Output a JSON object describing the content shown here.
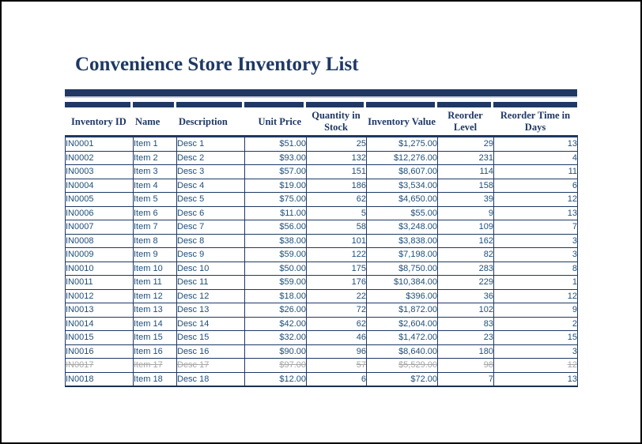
{
  "title": "Convenience Store Inventory List",
  "colors": {
    "navy": "#1F3864",
    "data_text_blue": "#1F4E79",
    "struck_gray": "#A6A6A6",
    "frame_black": "#000000"
  },
  "table": {
    "columns": [
      {
        "key": "id",
        "label": "Inventory ID"
      },
      {
        "key": "name",
        "label": "Name"
      },
      {
        "key": "desc",
        "label": "Description"
      },
      {
        "key": "price",
        "label": "Unit Price"
      },
      {
        "key": "qty",
        "label": "Quantity in Stock"
      },
      {
        "key": "value",
        "label": "Inventory Value"
      },
      {
        "key": "reorder_level",
        "label": "Reorder Level"
      },
      {
        "key": "reorder_days",
        "label": "Reorder Time in Days"
      }
    ],
    "rows": [
      {
        "id": "IN0001",
        "name": "Item 1",
        "desc": "Desc 1",
        "price": "$51.00",
        "qty": "25",
        "value": "$1,275.00",
        "reorder_level": "29",
        "reorder_days": "13",
        "struck": false
      },
      {
        "id": "IN0002",
        "name": "Item 2",
        "desc": "Desc 2",
        "price": "$93.00",
        "qty": "132",
        "value": "$12,276.00",
        "reorder_level": "231",
        "reorder_days": "4",
        "struck": false
      },
      {
        "id": "IN0003",
        "name": "Item 3",
        "desc": "Desc 3",
        "price": "$57.00",
        "qty": "151",
        "value": "$8,607.00",
        "reorder_level": "114",
        "reorder_days": "11",
        "struck": false
      },
      {
        "id": "IN0004",
        "name": "Item 4",
        "desc": "Desc 4",
        "price": "$19.00",
        "qty": "186",
        "value": "$3,534.00",
        "reorder_level": "158",
        "reorder_days": "6",
        "struck": false
      },
      {
        "id": "IN0005",
        "name": "Item 5",
        "desc": "Desc 5",
        "price": "$75.00",
        "qty": "62",
        "value": "$4,650.00",
        "reorder_level": "39",
        "reorder_days": "12",
        "struck": false
      },
      {
        "id": "IN0006",
        "name": "Item 6",
        "desc": "Desc 6",
        "price": "$11.00",
        "qty": "5",
        "value": "$55.00",
        "reorder_level": "9",
        "reorder_days": "13",
        "struck": false
      },
      {
        "id": "IN0007",
        "name": "Item 7",
        "desc": "Desc 7",
        "price": "$56.00",
        "qty": "58",
        "value": "$3,248.00",
        "reorder_level": "109",
        "reorder_days": "7",
        "struck": false
      },
      {
        "id": "IN0008",
        "name": "Item 8",
        "desc": "Desc 8",
        "price": "$38.00",
        "qty": "101",
        "value": "$3,838.00",
        "reorder_level": "162",
        "reorder_days": "3",
        "struck": false
      },
      {
        "id": "IN0009",
        "name": "Item 9",
        "desc": "Desc 9",
        "price": "$59.00",
        "qty": "122",
        "value": "$7,198.00",
        "reorder_level": "82",
        "reorder_days": "3",
        "struck": false
      },
      {
        "id": "IN0010",
        "name": "Item 10",
        "desc": "Desc 10",
        "price": "$50.00",
        "qty": "175",
        "value": "$8,750.00",
        "reorder_level": "283",
        "reorder_days": "8",
        "struck": false
      },
      {
        "id": "IN0011",
        "name": "Item 11",
        "desc": "Desc 11",
        "price": "$59.00",
        "qty": "176",
        "value": "$10,384.00",
        "reorder_level": "229",
        "reorder_days": "1",
        "struck": false
      },
      {
        "id": "IN0012",
        "name": "Item 12",
        "desc": "Desc 12",
        "price": "$18.00",
        "qty": "22",
        "value": "$396.00",
        "reorder_level": "36",
        "reorder_days": "12",
        "struck": false
      },
      {
        "id": "IN0013",
        "name": "Item 13",
        "desc": "Desc 13",
        "price": "$26.00",
        "qty": "72",
        "value": "$1,872.00",
        "reorder_level": "102",
        "reorder_days": "9",
        "struck": false
      },
      {
        "id": "IN0014",
        "name": "Item 14",
        "desc": "Desc 14",
        "price": "$42.00",
        "qty": "62",
        "value": "$2,604.00",
        "reorder_level": "83",
        "reorder_days": "2",
        "struck": false
      },
      {
        "id": "IN0015",
        "name": "Item 15",
        "desc": "Desc 15",
        "price": "$32.00",
        "qty": "46",
        "value": "$1,472.00",
        "reorder_level": "23",
        "reorder_days": "15",
        "struck": false
      },
      {
        "id": "IN0016",
        "name": "Item 16",
        "desc": "Desc 16",
        "price": "$90.00",
        "qty": "96",
        "value": "$8,640.00",
        "reorder_level": "180",
        "reorder_days": "3",
        "struck": false
      },
      {
        "id": "IN0017",
        "name": "Item 17",
        "desc": "Desc 17",
        "price": "$97.00",
        "qty": "57",
        "value": "$5,529.00",
        "reorder_level": "98",
        "reorder_days": "12",
        "struck": true
      },
      {
        "id": "IN0018",
        "name": "Item 18",
        "desc": "Desc 18",
        "price": "$12.00",
        "qty": "6",
        "value": "$72.00",
        "reorder_level": "7",
        "reorder_days": "13",
        "struck": false
      }
    ]
  }
}
